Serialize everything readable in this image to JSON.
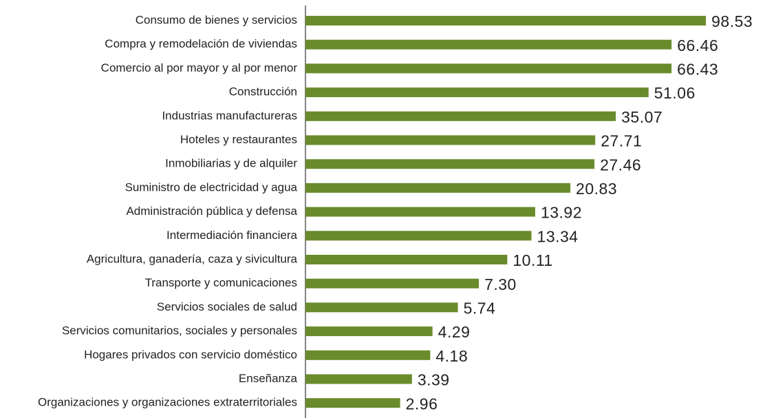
{
  "chart_data": {
    "type": "hbar",
    "categories": [
      "Consumo de bienes y servicios",
      "Compra y remodelación de viviendas",
      "Comercio al por mayor y al por menor",
      "Construcción",
      "Industrias manufactureras",
      "Hoteles y restaurantes",
      "Inmobiliarias y de alquiler",
      "Suministro de electricidad y agua",
      "Administración pública y defensa",
      "Intermediación financiera",
      "Agricultura, ganadería, caza y sivicultura",
      "Transporte y comunicaciones",
      "Servicios sociales de salud",
      "Servicios comunitarios, sociales y personales",
      "Hogares privados con servicio doméstico",
      "Enseñanza",
      "Organizaciones y organizaciones extraterritoriales"
    ],
    "values": [
      98.53,
      66.46,
      66.43,
      51.06,
      35.07,
      27.71,
      27.46,
      20.83,
      13.92,
      13.34,
      10.11,
      7.3,
      5.74,
      4.29,
      4.18,
      3.39,
      2.96
    ],
    "value_labels": [
      "98.53",
      "66.46",
      "66.43",
      "51.06",
      "35.07",
      "27.71",
      "27.46",
      "20.83",
      "13.92",
      "13.34",
      "10.11",
      "7.30",
      "5.74",
      "4.29",
      "4.18",
      "3.39",
      "2.96"
    ],
    "color": "#6a8b2c",
    "log_scale": true,
    "xlim": [
      1,
      100
    ]
  }
}
